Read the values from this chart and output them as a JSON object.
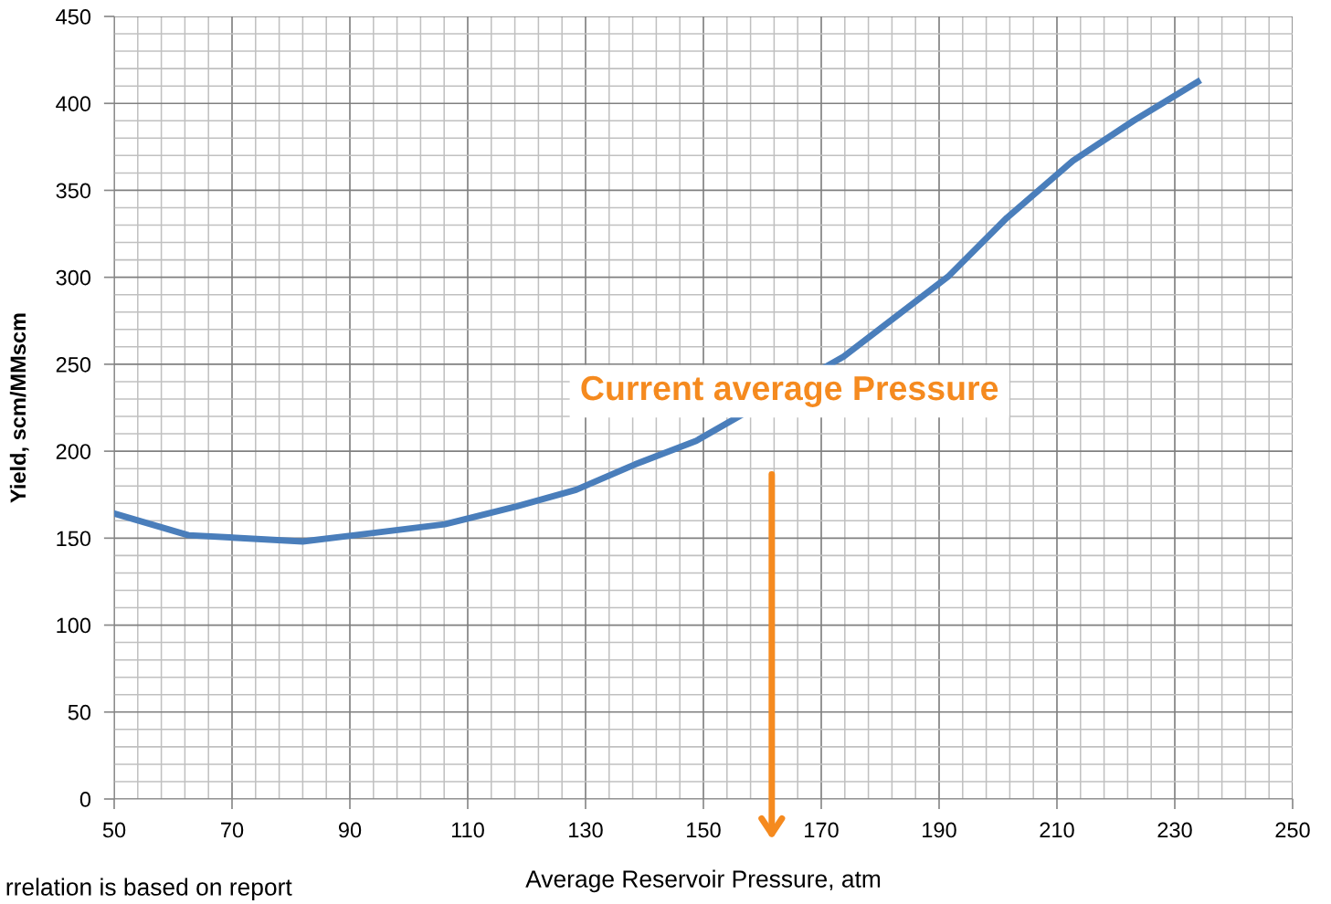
{
  "chart_data": {
    "type": "line",
    "xlabel": "Average Reservoir Pressure, atm",
    "ylabel": "Yield, scm/MMscm",
    "x": [
      50,
      62.6,
      82.0,
      90.8,
      106.1,
      118.4,
      128.4,
      138.4,
      148.8,
      173.8,
      191.5,
      201.5,
      212.7,
      223,
      233.9
    ],
    "series": [
      {
        "color": "#4a7ebb",
        "values": [
          164.2,
          151.7,
          148.1,
          151.7,
          158,
          168.4,
          177.8,
          192.4,
          206,
          254.4,
          300.3,
          334.2,
          367,
          390,
          412.4
        ]
      }
    ],
    "xlim": [
      50,
      250
    ],
    "xticks": [
      50,
      70,
      90,
      110,
      130,
      150,
      170,
      190,
      210,
      230,
      250
    ],
    "ylim": [
      0,
      450
    ],
    "yticks": [
      0,
      50,
      100,
      150,
      200,
      250,
      300,
      350,
      400,
      450
    ],
    "grid": true,
    "legend": false,
    "marker": "none",
    "line_style": "solid",
    "annotations": [
      "Current average Pressure",
      "rrelation is based on report"
    ]
  }
}
